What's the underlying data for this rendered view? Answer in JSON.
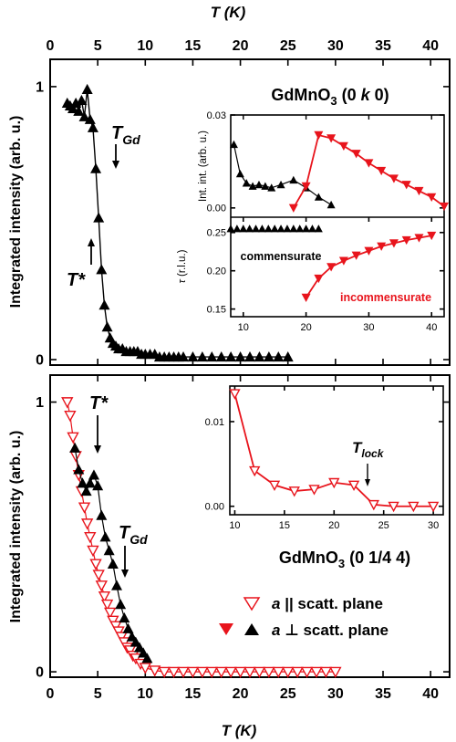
{
  "figure": {
    "top_axis_title": "T (K)",
    "bottom_axis_title": "T (K)",
    "colors": {
      "black_series": "#000000",
      "red_series": "#e8141c",
      "line": "#000000"
    }
  },
  "chart_data": [
    {
      "id": "top-main",
      "type": "scatter",
      "xlim": [
        0,
        42
      ],
      "ylim": [
        -0.02,
        1.1
      ],
      "xticks": [
        0,
        5,
        10,
        15,
        20,
        25,
        30,
        35,
        40
      ],
      "yticks": [
        0,
        1
      ],
      "ylabel": "Integrated intensity (arb. u.)",
      "xlabel": "T (K)",
      "title": "GdMnO3 (0 k 0)",
      "annotations": [
        {
          "text": "TGd",
          "x": 6.6,
          "y": 0.86
        },
        {
          "text": "T*",
          "x": 4.1,
          "y": 0.42
        }
      ],
      "series": [
        {
          "name": "",
          "marker": "filled-triangle-up",
          "color": "#000000",
          "x": [
            1.8,
            2.1,
            2.4,
            2.7,
            3.0,
            3.3,
            3.6,
            3.9,
            4.2,
            4.5,
            4.8,
            5.1,
            5.4,
            5.7,
            6.0,
            6.3,
            6.6,
            6.9,
            7.2,
            7.6,
            8.0,
            8.4,
            8.8,
            9.2,
            9.6,
            10.0,
            10.5,
            11.0,
            11.5,
            12.0,
            12.5,
            13.0,
            13.5,
            14.0,
            15.0,
            16.0,
            17.0,
            18.0,
            19.0,
            20.0,
            21.0,
            22.0,
            23.0,
            24.0,
            25.0
          ],
          "y": [
            0.94,
            0.93,
            0.92,
            0.94,
            0.91,
            0.95,
            0.89,
            0.99,
            0.88,
            0.85,
            0.7,
            0.52,
            0.33,
            0.2,
            0.12,
            0.08,
            0.06,
            0.05,
            0.04,
            0.04,
            0.03,
            0.03,
            0.03,
            0.03,
            0.02,
            0.02,
            0.02,
            0.02,
            0.01,
            0.01,
            0.01,
            0.01,
            0.01,
            0.01,
            0.01,
            0.01,
            0.01,
            0.01,
            0.01,
            0.01,
            0.01,
            0.01,
            0.01,
            0.01,
            0.01
          ]
        }
      ]
    },
    {
      "id": "top-inset-upper",
      "type": "line",
      "xlim": [
        8,
        42
      ],
      "ylim": [
        -0.003,
        0.03
      ],
      "yticks": [
        0.0,
        0.03
      ],
      "ytick_labels": [
        "0.00",
        "0.03"
      ],
      "ylabel": "Int. int. (arb. u.)",
      "series": [
        {
          "name": "",
          "marker": "filled-triangle-up",
          "color": "#000000",
          "x": [
            8.5,
            9.5,
            10.5,
            11.5,
            12.5,
            13.5,
            14.5,
            16.0,
            18.0,
            20.0,
            22.0,
            24.0
          ],
          "y": [
            0.0205,
            0.011,
            0.008,
            0.007,
            0.0075,
            0.007,
            0.0065,
            0.0075,
            0.009,
            0.0065,
            0.0035,
            0.001
          ]
        },
        {
          "name": "",
          "marker": "filled-triangle-down",
          "color": "#e8141c",
          "x": [
            18,
            20,
            22,
            24,
            26,
            28,
            30,
            32,
            34,
            36,
            38,
            40,
            42
          ],
          "y": [
            0.0,
            0.007,
            0.0235,
            0.0225,
            0.02,
            0.0175,
            0.0145,
            0.012,
            0.0095,
            0.0075,
            0.0055,
            0.0035,
            0.0005
          ]
        }
      ]
    },
    {
      "id": "top-inset-lower",
      "type": "line",
      "xlim": [
        8,
        42
      ],
      "ylim": [
        0.14,
        0.27
      ],
      "xticks": [
        10,
        20,
        30,
        40
      ],
      "yticks": [
        0.15,
        0.2,
        0.25
      ],
      "ytick_labels": [
        "0.15",
        "0.20",
        "0.25"
      ],
      "ylabel": "τ (r.l.u.)",
      "annotations": [
        {
          "text": "commensurate",
          "x": 19.0,
          "y": 0.23,
          "color": "#000000"
        },
        {
          "text": "incommensurate",
          "x": 32.5,
          "y": 0.165,
          "color": "#e8141c"
        }
      ],
      "series": [
        {
          "name": "",
          "marker": "filled-triangle-up",
          "color": "#000000",
          "x": [
            8,
            9,
            10,
            11,
            12,
            13,
            14,
            15,
            16,
            17,
            18,
            19,
            20,
            21,
            22
          ],
          "y": [
            0.255,
            0.255,
            0.255,
            0.255,
            0.255,
            0.255,
            0.255,
            0.255,
            0.255,
            0.255,
            0.255,
            0.255,
            0.255,
            0.255,
            0.255
          ]
        },
        {
          "name": "",
          "marker": "filled-triangle-down",
          "color": "#e8141c",
          "x": [
            20,
            22,
            24,
            26,
            28,
            30,
            32,
            34,
            36,
            38,
            40
          ],
          "y": [
            0.165,
            0.19,
            0.205,
            0.213,
            0.22,
            0.226,
            0.232,
            0.236,
            0.24,
            0.243,
            0.246
          ]
        }
      ]
    },
    {
      "id": "bottom-main",
      "type": "scatter",
      "xlim": [
        0,
        42
      ],
      "ylim": [
        -0.02,
        1.1
      ],
      "xticks": [
        0,
        5,
        10,
        15,
        20,
        25,
        30,
        35,
        40
      ],
      "yticks": [
        0,
        1
      ],
      "ylabel": "Integrated intensity (arb. u.)",
      "xlabel": "T (K)",
      "title": "GdMnO3 (0 1/4 4)",
      "legend": {
        "placement": "bottom-right",
        "entries": [
          {
            "label": "a || scatt. plane",
            "marker": "open-triangle-down"
          },
          {
            "label": "a ⊥ scatt. plane",
            "marker": "filled-pair"
          }
        ]
      },
      "annotations": [
        {
          "text": "T*",
          "x": 4.8,
          "y": 0.95
        },
        {
          "text": "TGd",
          "x": 7.4,
          "y": 0.58
        }
      ],
      "series": [
        {
          "name": "a || scatt. plane",
          "marker": "open-triangle-down",
          "color": "#e8141c",
          "x": [
            1.8,
            2.1,
            2.4,
            2.7,
            3.0,
            3.3,
            3.6,
            3.9,
            4.2,
            4.5,
            4.8,
            5.1,
            5.4,
            5.7,
            6.0,
            6.3,
            6.6,
            6.9,
            7.2,
            7.5,
            7.8,
            8.1,
            8.4,
            8.7,
            9.0,
            9.5,
            10.0,
            11.0,
            12.0,
            13.0,
            14.0,
            15.0,
            16.0,
            17.0,
            18.0,
            19.0,
            20.0,
            21.0,
            22.0,
            23.0,
            24.0,
            25.0,
            26.0,
            27.0,
            28.0,
            29.0,
            30.0
          ],
          "y": [
            1.0,
            0.95,
            0.87,
            0.8,
            0.73,
            0.67,
            0.61,
            0.55,
            0.5,
            0.45,
            0.4,
            0.36,
            0.32,
            0.28,
            0.25,
            0.22,
            0.19,
            0.17,
            0.15,
            0.13,
            0.11,
            0.09,
            0.08,
            0.06,
            0.05,
            0.03,
            0.015,
            0.005,
            0.0,
            0.0,
            0.0,
            0.0,
            0.0,
            0.0,
            0.0,
            0.0,
            0.0,
            0.0,
            0.0,
            0.0,
            0.0,
            0.0,
            0.0,
            0.0,
            0.0,
            0.0,
            0.0
          ]
        },
        {
          "name": "a ⊥ scatt. plane",
          "marker": "filled-triangle-up",
          "color": "#000000",
          "x": [
            2.6,
            3.0,
            3.4,
            3.8,
            4.2,
            4.6,
            5.0,
            5.4,
            5.8,
            6.2,
            6.6,
            7.0,
            7.4,
            7.8,
            8.2,
            8.6,
            9.0,
            9.4,
            9.8,
            10.2
          ],
          "y": [
            0.83,
            0.75,
            0.7,
            0.67,
            0.7,
            0.73,
            0.69,
            0.58,
            0.5,
            0.45,
            0.4,
            0.32,
            0.25,
            0.2,
            0.16,
            0.13,
            0.11,
            0.09,
            0.07,
            0.05
          ]
        }
      ]
    },
    {
      "id": "bottom-inset",
      "type": "line",
      "xlim": [
        9.5,
        31
      ],
      "ylim": [
        -0.001,
        0.0142
      ],
      "xticks": [
        10,
        15,
        20,
        25,
        30
      ],
      "yticks": [
        0.0,
        0.01
      ],
      "ytick_labels": [
        "0.00",
        "0.01"
      ],
      "annotations": [
        {
          "text": "Tlock",
          "x": 23.0,
          "y": 0.0045
        }
      ],
      "series": [
        {
          "name": "",
          "marker": "open-triangle-down",
          "color": "#e8141c",
          "x": [
            10,
            12,
            14,
            16,
            18,
            20,
            22,
            24,
            26,
            28,
            30
          ],
          "y": [
            0.0133,
            0.0042,
            0.0025,
            0.0018,
            0.002,
            0.0028,
            0.0025,
            0.0002,
            0.0,
            0.0,
            0.0
          ]
        }
      ]
    }
  ]
}
